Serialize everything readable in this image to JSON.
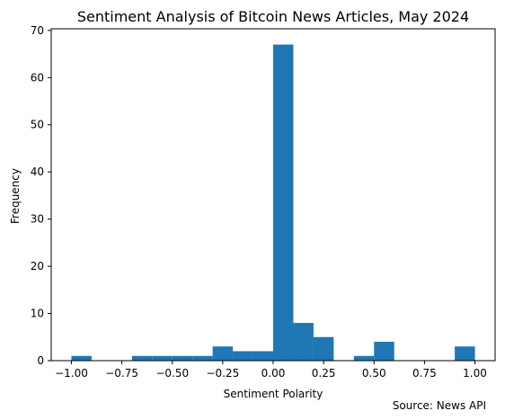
{
  "chart_data": {
    "type": "bar",
    "title": "Sentiment Analysis of Bitcoin News Articles, May 2024",
    "xlabel": "Sentiment Polarity",
    "ylabel": "Frequency",
    "xlim": [
      -1.1,
      1.1
    ],
    "ylim": [
      0,
      70.35
    ],
    "xticks": [
      "-1.00",
      "-0.75",
      "-0.50",
      "-0.25",
      "0.00",
      "0.25",
      "0.50",
      "0.75",
      "1.00"
    ],
    "yticks": [
      "0",
      "10",
      "20",
      "30",
      "40",
      "50",
      "60",
      "70"
    ],
    "bins": [
      {
        "x0": -1.0,
        "x1": -0.9,
        "count": 1
      },
      {
        "x0": -0.9,
        "x1": -0.8,
        "count": 0
      },
      {
        "x0": -0.8,
        "x1": -0.7,
        "count": 0
      },
      {
        "x0": -0.7,
        "x1": -0.6,
        "count": 1
      },
      {
        "x0": -0.6,
        "x1": -0.5,
        "count": 1
      },
      {
        "x0": -0.5,
        "x1": -0.4,
        "count": 1
      },
      {
        "x0": -0.4,
        "x1": -0.3,
        "count": 1
      },
      {
        "x0": -0.3,
        "x1": -0.2,
        "count": 3
      },
      {
        "x0": -0.2,
        "x1": -0.1,
        "count": 2
      },
      {
        "x0": -0.1,
        "x1": 0.0,
        "count": 2
      },
      {
        "x0": 0.0,
        "x1": 0.1,
        "count": 67
      },
      {
        "x0": 0.1,
        "x1": 0.2,
        "count": 8
      },
      {
        "x0": 0.2,
        "x1": 0.3,
        "count": 5
      },
      {
        "x0": 0.3,
        "x1": 0.4,
        "count": 0
      },
      {
        "x0": 0.4,
        "x1": 0.5,
        "count": 1
      },
      {
        "x0": 0.5,
        "x1": 0.6,
        "count": 4
      },
      {
        "x0": 0.6,
        "x1": 0.7,
        "count": 0
      },
      {
        "x0": 0.7,
        "x1": 0.8,
        "count": 0
      },
      {
        "x0": 0.8,
        "x1": 0.9,
        "count": 0
      },
      {
        "x0": 0.9,
        "x1": 1.0,
        "count": 3
      }
    ],
    "bar_color": "#1f77b4",
    "grid": false,
    "source_note": "Source: News API"
  }
}
